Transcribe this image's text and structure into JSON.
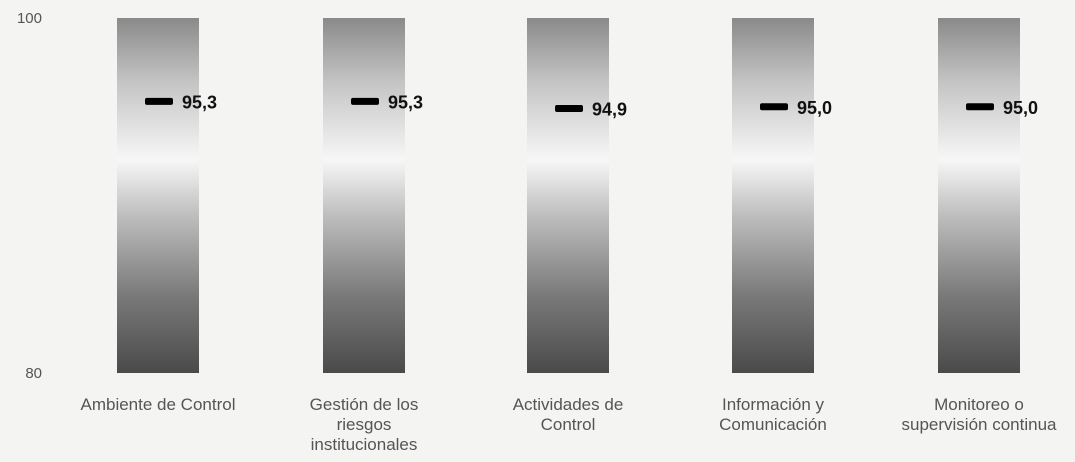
{
  "chart_data": {
    "type": "bar",
    "categories": [
      [
        "Ambiente de Control"
      ],
      [
        "Gestión de los",
        "riesgos",
        "institucionales"
      ],
      [
        "Actividades de",
        "Control"
      ],
      [
        "Información y",
        "Comunicación"
      ],
      [
        "Monitoreo o",
        "supervisión continua"
      ]
    ],
    "values": [
      95.3,
      95.3,
      94.9,
      95.0,
      95.0
    ],
    "value_labels": [
      "95,3",
      "95,3",
      "94,9",
      "95,0",
      "95,0"
    ],
    "ylim": [
      80,
      100
    ],
    "yticks": [
      "100",
      "80"
    ],
    "bar_fill": "gradient gray-white-gray",
    "marker_color": "#000000"
  }
}
